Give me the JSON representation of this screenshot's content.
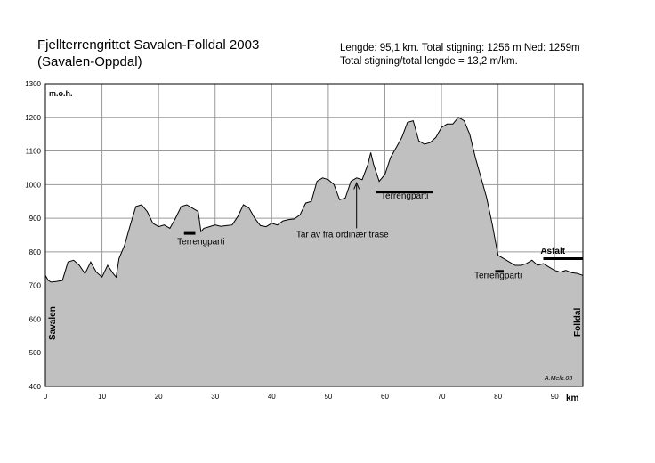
{
  "header": {
    "title_line1": "Fjellterrengrittet Savalen-Folldal 2003",
    "title_line2": "(Savalen-Oppdal)",
    "stats_line1": "Lengde: 95,1 km.  Total stigning: 1256 m Ned: 1259m",
    "stats_line2": "Total stigning/total lengde = 13,2 m/km."
  },
  "colors": {
    "fill": "#c0c0c0",
    "outline": "#000000",
    "grid": "#9a9a9a"
  },
  "chart_data": {
    "type": "area",
    "title": "Fjellterrengrittet Savalen-Folldal 2003",
    "xlabel": "km",
    "ylabel": "m.o.h.",
    "xlim": [
      0,
      95
    ],
    "ylim": [
      400,
      1300
    ],
    "grid": true,
    "x_ticks": [
      0,
      10,
      20,
      30,
      40,
      50,
      60,
      70,
      80,
      90
    ],
    "y_ticks": [
      400,
      500,
      600,
      700,
      800,
      900,
      1000,
      1100,
      1200,
      1300
    ],
    "start_label": "Savalen",
    "end_label": "Folldal",
    "signature": "A.Melk.03",
    "profile": [
      [
        0,
        730
      ],
      [
        0.5,
        715
      ],
      [
        1,
        710
      ],
      [
        2,
        712
      ],
      [
        3,
        715
      ],
      [
        4,
        770
      ],
      [
        5,
        775
      ],
      [
        6,
        760
      ],
      [
        7,
        735
      ],
      [
        8,
        770
      ],
      [
        9,
        740
      ],
      [
        10,
        725
      ],
      [
        11,
        760
      ],
      [
        12,
        735
      ],
      [
        12.5,
        725
      ],
      [
        13,
        780
      ],
      [
        14,
        820
      ],
      [
        15,
        880
      ],
      [
        16,
        935
      ],
      [
        17,
        940
      ],
      [
        18,
        920
      ],
      [
        19,
        885
      ],
      [
        20,
        875
      ],
      [
        21,
        880
      ],
      [
        22,
        870
      ],
      [
        23,
        900
      ],
      [
        24,
        935
      ],
      [
        25,
        940
      ],
      [
        26,
        930
      ],
      [
        27,
        920
      ],
      [
        27.5,
        860
      ],
      [
        28,
        870
      ],
      [
        29,
        875
      ],
      [
        30,
        880
      ],
      [
        31,
        876
      ],
      [
        32,
        878
      ],
      [
        33,
        880
      ],
      [
        34,
        905
      ],
      [
        35,
        940
      ],
      [
        36,
        930
      ],
      [
        37,
        900
      ],
      [
        38,
        878
      ],
      [
        39,
        875
      ],
      [
        40,
        885
      ],
      [
        41,
        880
      ],
      [
        42,
        892
      ],
      [
        43,
        896
      ],
      [
        44,
        898
      ],
      [
        45,
        910
      ],
      [
        46,
        945
      ],
      [
        47,
        950
      ],
      [
        48,
        1010
      ],
      [
        49,
        1020
      ],
      [
        50,
        1015
      ],
      [
        51,
        1000
      ],
      [
        52,
        955
      ],
      [
        53,
        960
      ],
      [
        54,
        1010
      ],
      [
        55,
        1020
      ],
      [
        56,
        1015
      ],
      [
        57,
        1060
      ],
      [
        57.5,
        1095
      ],
      [
        58,
        1060
      ],
      [
        59,
        1010
      ],
      [
        60,
        1030
      ],
      [
        61,
        1080
      ],
      [
        62,
        1110
      ],
      [
        63,
        1140
      ],
      [
        64,
        1185
      ],
      [
        65,
        1190
      ],
      [
        66,
        1130
      ],
      [
        67,
        1120
      ],
      [
        68,
        1125
      ],
      [
        69,
        1140
      ],
      [
        70,
        1170
      ],
      [
        71,
        1180
      ],
      [
        72,
        1180
      ],
      [
        73,
        1200
      ],
      [
        74,
        1190
      ],
      [
        75,
        1150
      ],
      [
        76,
        1080
      ],
      [
        77,
        1020
      ],
      [
        78,
        960
      ],
      [
        79,
        880
      ],
      [
        80,
        790
      ],
      [
        81,
        780
      ],
      [
        82,
        770
      ],
      [
        83,
        760
      ],
      [
        84,
        760
      ],
      [
        85,
        765
      ],
      [
        86,
        775
      ],
      [
        87,
        760
      ],
      [
        88,
        765
      ],
      [
        89,
        755
      ],
      [
        90,
        745
      ],
      [
        91,
        740
      ],
      [
        92,
        745
      ],
      [
        93,
        738
      ],
      [
        94,
        736
      ],
      [
        95,
        730
      ]
    ],
    "annotations": [
      {
        "text": "Terrengparti",
        "bar_x": [
          24.5,
          26.5
        ],
        "bar_y": 855,
        "label_x": 27.5,
        "label_y": 822
      },
      {
        "text": "Terrengparti",
        "bar_x": [
          58.5,
          68.5
        ],
        "bar_y": 978,
        "label_x": 63.5,
        "label_y": 958
      },
      {
        "text": "Terrengparti",
        "bar_x": [
          79.5,
          81
        ],
        "bar_y": 742,
        "label_x": 80,
        "label_y": 722
      },
      {
        "text": "Asfalt",
        "bar_x": [
          88,
          95
        ],
        "bar_y": 780,
        "label_x": 87.5,
        "label_y": 794
      },
      {
        "text": "Tar av fra ordinær trase",
        "arrow_x": 55,
        "arrow_from_y": 870,
        "arrow_to_y": 1005,
        "label_x": 52.5,
        "label_y": 844
      }
    ]
  }
}
